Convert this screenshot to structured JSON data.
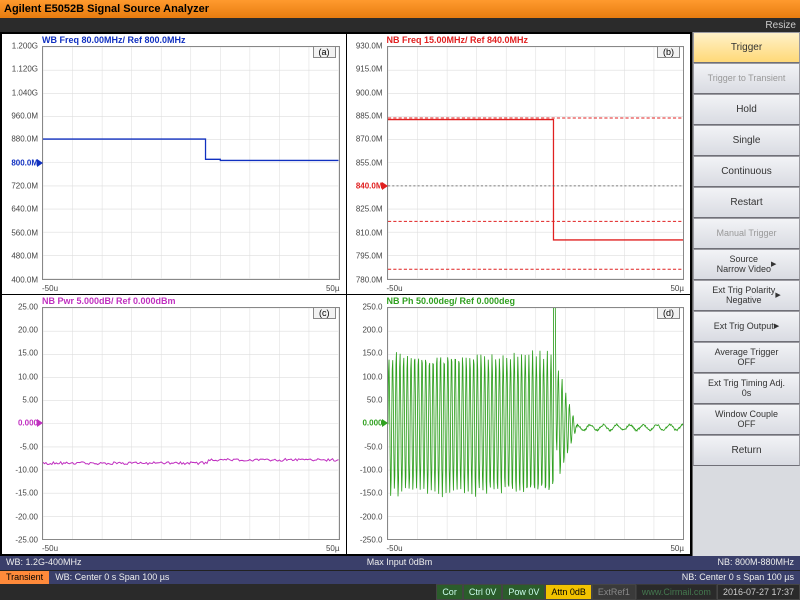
{
  "titlebar": {
    "title": "Agilent E5052B Signal Source Analyzer"
  },
  "resize_label": "Resize",
  "panels": {
    "a": {
      "title": "WB Freq 80.00MHz/ Ref 800.0MHz",
      "title_color": "#1030c0",
      "badge": "(a)",
      "type": "line",
      "yticks": [
        "1.200G",
        "1.120G",
        "1.040G",
        "960.0M",
        "880.0M",
        "800.0M",
        "720.0M",
        "640.0M",
        "560.0M",
        "480.0M",
        "400.0M"
      ],
      "ref_label": "800.0M",
      "ref_index": 5,
      "ref_color": "#1030c0",
      "x_left": "-50u",
      "x_right": "50µ",
      "line_color": "#1030c0",
      "data": [
        [
          -50,
          882
        ],
        [
          5,
          882
        ],
        [
          5,
          812
        ],
        [
          10,
          812
        ],
        [
          10,
          808
        ],
        [
          50,
          808
        ]
      ],
      "ylim": [
        400,
        1200
      ],
      "xlim": [
        -50,
        50
      ]
    },
    "b": {
      "title": "NB Freq 15.00MHz/ Ref 840.0MHz",
      "title_color": "#e02020",
      "badge": "(b)",
      "type": "line",
      "yticks": [
        "930.0M",
        "915.0M",
        "900.0M",
        "885.0M",
        "870.0M",
        "855.0M",
        "840.0M",
        "825.0M",
        "810.0M",
        "795.0M",
        "780.0M"
      ],
      "ref_label": "840.0M",
      "ref_index": 6,
      "ref_color": "#e02020",
      "x_left": "-50u",
      "x_right": "50µ",
      "line_color": "#e02020",
      "data": [
        [
          -50,
          883
        ],
        [
          6,
          883
        ],
        [
          6,
          805
        ],
        [
          50,
          805
        ]
      ],
      "dashed_lines_y": [
        884,
        817,
        786
      ],
      "ref_dash_y": 840,
      "ylim": [
        780,
        930
      ],
      "xlim": [
        -50,
        50
      ]
    },
    "c": {
      "title": "NB Pwr 5.000dB/ Ref 0.000dBm",
      "title_color": "#c030c0",
      "badge": "(c)",
      "type": "noisy",
      "yticks": [
        "25.00",
        "20.00",
        "15.00",
        "10.00",
        "5.00",
        "0.000",
        "-5.00",
        "-10.00",
        "-15.00",
        "-20.00",
        "-25.00"
      ],
      "ref_label": "0.000",
      "ref_index": 5,
      "ref_color": "#c030c0",
      "x_left": "-50u",
      "x_right": "50µ",
      "line_color": "#c030c0",
      "baseline_before": -8.5,
      "baseline_after": -7.8,
      "step_x": 6,
      "noise_amp": 0.6,
      "ylim": [
        -25,
        25
      ],
      "xlim": [
        -50,
        50
      ]
    },
    "d": {
      "title": "NB Ph 50.00deg/ Ref 0.000deg",
      "title_color": "#30a020",
      "badge": "(d)",
      "type": "phase",
      "yticks": [
        "250.0",
        "200.0",
        "150.0",
        "100.0",
        "50.0",
        "0.000",
        "-50.0",
        "-100.0",
        "-150.0",
        "-200.0",
        "-250.0"
      ],
      "ref_label": "0.000",
      "ref_index": 5,
      "ref_color": "#30a020",
      "x_left": "-50u",
      "x_right": "50µ",
      "line_color": "#30a020",
      "ylim": [
        -250,
        250
      ],
      "xlim": [
        -50,
        50
      ]
    }
  },
  "sidebar": [
    {
      "label": "Trigger",
      "active": true,
      "interact": true
    },
    {
      "label": "Trigger to Transient",
      "disabled": true,
      "small": true,
      "interact": true
    },
    {
      "label": "Hold",
      "interact": true
    },
    {
      "label": "Single",
      "interact": true
    },
    {
      "label": "Continuous",
      "interact": true
    },
    {
      "label": "Restart",
      "interact": true
    },
    {
      "label": "Manual Trigger",
      "disabled": true,
      "small": true,
      "interact": true
    },
    {
      "label": "Source\nNarrow Video",
      "small": true,
      "interact": true,
      "arrow": true
    },
    {
      "label": "Ext Trig Polarity\nNegative",
      "small": true,
      "interact": true,
      "arrow": true
    },
    {
      "label": "Ext Trig Output",
      "small": true,
      "interact": true,
      "arrow": true
    },
    {
      "label": "Average Trigger\nOFF",
      "small": true,
      "interact": true
    },
    {
      "label": "Ext Trig Timing Adj.\n0s",
      "small": true,
      "interact": true
    },
    {
      "label": "Window Couple\nOFF",
      "small": true,
      "interact": true
    },
    {
      "label": "Return",
      "interact": true
    }
  ],
  "status1": {
    "left": "WB: 1.2G-400MHz",
    "center": "Max Input 0dBm",
    "right": "NB: 800M-880MHz"
  },
  "status2": {
    "left_tag": "Transient",
    "left": "WB: Center 0 s  Span 100 µs",
    "right": "NB: Center 0 s  Span 100 µs"
  },
  "bottombar": {
    "items": [
      {
        "text": "Cor",
        "bg": "#2b5c2b",
        "fg": "#cfe"
      },
      {
        "text": "Ctrl 0V",
        "bg": "#2b5c2b",
        "fg": "#cfe"
      },
      {
        "text": "Pow 0V",
        "bg": "#2b5c2b",
        "fg": "#cfe"
      },
      {
        "text": "Attn 0dB",
        "bg": "#f2c200",
        "fg": "#000"
      },
      {
        "text": "ExtRef1",
        "bg": "#3a3a3a",
        "fg": "#888"
      }
    ],
    "timestamp": "2016-07-27 17:37",
    "watermark": "www.Cirmail.com"
  },
  "colors": {
    "bg": "#000000",
    "grid": "#dddddd",
    "panel_bg": "#ffffff"
  }
}
